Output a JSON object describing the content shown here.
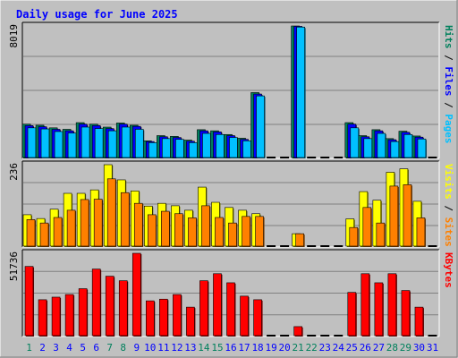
{
  "title": "Daily usage for June 2025",
  "colors": {
    "background": "#c0c0c0",
    "title": "#0000ff",
    "hits": "#00805c",
    "files": "#0000ff",
    "pages": "#00c0ff",
    "visits": "#ffff00",
    "sites": "#ff8000",
    "kbytes": "#ff0000",
    "weekend_day": "#00805c",
    "weekday": "#0000ff"
  },
  "chart_data": [
    {
      "type": "bar",
      "name_parts": [
        "Pages",
        "Files",
        "Hits"
      ],
      "ymax_label": "8019",
      "ylim": [
        0,
        8019
      ],
      "x": [
        1,
        2,
        3,
        4,
        5,
        6,
        7,
        8,
        9,
        10,
        11,
        12,
        13,
        14,
        15,
        16,
        17,
        18,
        19,
        20,
        21,
        22,
        23,
        24,
        25,
        26,
        27,
        28,
        29,
        30,
        31
      ],
      "series": [
        {
          "name": "Hits",
          "values": [
            2036,
            1968,
            1810,
            1720,
            2126,
            2036,
            1855,
            2104,
            1968,
            1018,
            1335,
            1290,
            1063,
            1697,
            1629,
            1403,
            1176,
            3959,
            0,
            0,
            8019,
            0,
            0,
            0,
            2127,
            1335,
            1697,
            1154,
            1606,
            1313,
            0
          ]
        },
        {
          "name": "Files",
          "values": [
            1946,
            1878,
            1720,
            1629,
            2036,
            1946,
            1765,
            2036,
            1900,
            973,
            1267,
            1222,
            995,
            1629,
            1561,
            1335,
            1108,
            3869,
            0,
            0,
            7996,
            0,
            0,
            0,
            2036,
            1267,
            1629,
            1086,
            1538,
            1244,
            0
          ]
        },
        {
          "name": "Pages",
          "values": [
            1810,
            1742,
            1584,
            1493,
            1855,
            1765,
            1629,
            1855,
            1720,
            905,
            1154,
            1108,
            905,
            1470,
            1403,
            1222,
            1018,
            3756,
            0,
            0,
            7951,
            0,
            0,
            0,
            1810,
            1154,
            1470,
            973,
            1403,
            1131,
            0
          ]
        }
      ]
    },
    {
      "type": "bar",
      "name_parts": [
        "Sites",
        "Visits"
      ],
      "ymax_label": "236",
      "ylim": [
        0,
        236
      ],
      "x": [
        1,
        2,
        3,
        4,
        5,
        6,
        7,
        8,
        9,
        10,
        11,
        12,
        13,
        14,
        15,
        16,
        17,
        18,
        19,
        20,
        21,
        22,
        23,
        24,
        25,
        26,
        27,
        28,
        29,
        30,
        31
      ],
      "series": [
        {
          "name": "Visits",
          "values": [
            91,
            80,
            107,
            153,
            153,
            163,
            236,
            192,
            160,
            116,
            124,
            117,
            104,
            171,
            127,
            112,
            104,
            94,
            0,
            0,
            36,
            0,
            0,
            0,
            79,
            158,
            133,
            214,
            224,
            130,
            0
          ]
        },
        {
          "name": "Sites",
          "values": [
            77,
            67,
            83,
            104,
            135,
            136,
            195,
            155,
            124,
            91,
            101,
            94,
            82,
            117,
            83,
            67,
            86,
            86,
            0,
            0,
            36,
            0,
            0,
            0,
            54,
            112,
            67,
            174,
            178,
            82,
            0
          ]
        }
      ]
    },
    {
      "type": "bar",
      "name_parts": [
        "KBytes"
      ],
      "ymax_label": "51736",
      "ylim": [
        0,
        51736
      ],
      "x": [
        1,
        2,
        3,
        4,
        5,
        6,
        7,
        8,
        9,
        10,
        11,
        12,
        13,
        14,
        15,
        16,
        17,
        18,
        19,
        20,
        21,
        22,
        23,
        24,
        25,
        26,
        27,
        28,
        29,
        30,
        31
      ],
      "series": [
        {
          "name": "KBytes",
          "values": [
            43480,
            22560,
            24190,
            25830,
            29500,
            41830,
            37350,
            34500,
            51730,
            21860,
            22920,
            25830,
            17920,
            34500,
            38920,
            33210,
            24810,
            22560,
            0,
            0,
            5670,
            0,
            0,
            0,
            27170,
            38920,
            33210,
            38920,
            28350,
            17920,
            0
          ]
        }
      ]
    }
  ],
  "weekend_days": [
    1,
    7,
    8,
    14,
    15,
    21,
    22,
    28,
    29
  ]
}
